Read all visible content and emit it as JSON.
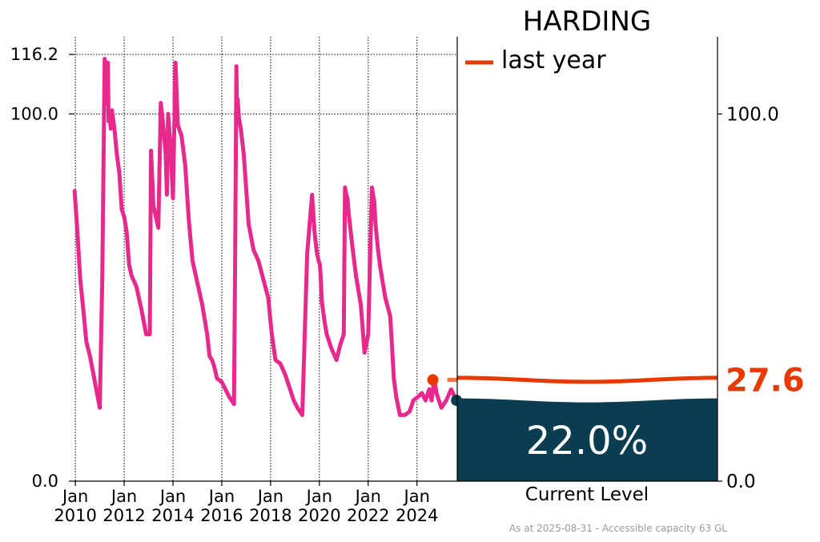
{
  "chart_data": {
    "type": "line",
    "title": "HARDING",
    "footnote": "As at 2025-08-31 - Accessible capacity 63 GL",
    "colors": {
      "history_line": "#e8298c",
      "last_year": "#e83a00",
      "current_fill": "#0b3d52",
      "current_marker": "#0b3d52"
    },
    "history": {
      "x_tick_labels": [
        [
          "Jan",
          "2010"
        ],
        [
          "Jan",
          "2012"
        ],
        [
          "Jan",
          "2014"
        ],
        [
          "Jan",
          "2016"
        ],
        [
          "Jan",
          "2018"
        ],
        [
          "Jan",
          "2020"
        ],
        [
          "Jan",
          "2022"
        ],
        [
          "Jan",
          "2024"
        ]
      ],
      "x_tick_years": [
        2010,
        2012,
        2014,
        2016,
        2018,
        2020,
        2022,
        2024
      ],
      "xlim": [
        2009.93,
        2025.65
      ],
      "y_tick_labels": [
        "0.0",
        "100.0",
        "116.2"
      ],
      "y_tick_values": [
        0,
        100,
        116.2
      ],
      "ylim": [
        0,
        121
      ],
      "grid": true,
      "series": [
        {
          "x": [
            2009.97,
            2010.08,
            2010.2,
            2010.32,
            2010.45,
            2010.6,
            2010.8,
            2011.0,
            2011.1,
            2011.2,
            2011.3,
            2011.33,
            2011.36,
            2011.4,
            2011.45,
            2011.5,
            2011.6,
            2011.7,
            2011.8,
            2011.9,
            2012.0,
            2012.1,
            2012.2,
            2012.3,
            2012.5,
            2012.7,
            2012.9,
            2013.05,
            2013.1,
            2013.2,
            2013.3,
            2013.4,
            2013.5,
            2013.6,
            2013.7,
            2013.75,
            2013.8,
            2013.9,
            2014.0,
            2014.1,
            2014.2,
            2014.35,
            2014.5,
            2014.65,
            2014.8,
            2015.0,
            2015.2,
            2015.4,
            2015.5,
            2015.6,
            2015.7,
            2015.8,
            2016.0,
            2016.15,
            2016.3,
            2016.5,
            2016.55,
            2016.6,
            2016.62,
            2016.65,
            2016.7,
            2016.78,
            2016.9,
            2017.1,
            2017.3,
            2017.5,
            2017.7,
            2017.9,
            2018.05,
            2018.2,
            2018.4,
            2018.6,
            2018.8,
            2018.95,
            2019.1,
            2019.3,
            2019.5,
            2019.7,
            2019.8,
            2019.9,
            2019.97,
            2020.02,
            2020.05,
            2020.1,
            2020.2,
            2020.3,
            2020.5,
            2020.7,
            2020.85,
            2021.0,
            2021.05,
            2021.1,
            2021.15,
            2021.2,
            2021.35,
            2021.5,
            2021.7,
            2021.85,
            2022.0,
            2022.15,
            2022.25,
            2022.3,
            2022.4,
            2022.5,
            2022.7,
            2022.9,
            2022.95,
            2023.05,
            2023.15,
            2023.3,
            2023.5,
            2023.7,
            2023.85,
            2024.05,
            2024.2,
            2024.35,
            2024.5,
            2024.6,
            2024.7,
            2024.8,
            2024.9,
            2025.0,
            2025.2,
            2025.4,
            2025.62
          ],
          "y": [
            79,
            68,
            55,
            47,
            38,
            34,
            27,
            20,
            55,
            115,
            103,
            114,
            98,
            100,
            96,
            101,
            96,
            89,
            84,
            74,
            72,
            68,
            59,
            56,
            53,
            47,
            40,
            40,
            90,
            75,
            72,
            69,
            103,
            97,
            89,
            78,
            100,
            91,
            77,
            114,
            97,
            94,
            86,
            71,
            60,
            54,
            48,
            40,
            34,
            33,
            31,
            28,
            27,
            25,
            23,
            21,
            62,
            113,
            103,
            104,
            99,
            96,
            89,
            70,
            63,
            60,
            55,
            50,
            40,
            33,
            32,
            29,
            25,
            22,
            20,
            18,
            62,
            78,
            68,
            62,
            60,
            59,
            56,
            49,
            44,
            40,
            36,
            33,
            37,
            40,
            80,
            78,
            77,
            73,
            64,
            56,
            48,
            35,
            40,
            80,
            76,
            70,
            63,
            58,
            50,
            45,
            40,
            28,
            23,
            18,
            18,
            19,
            22,
            23,
            24,
            22,
            25,
            22,
            28,
            24,
            22,
            20,
            22,
            25,
            22
          ]
        }
      ],
      "last_year_marker": {
        "x": 2024.65,
        "y": 27.6
      },
      "current_marker": {
        "x": 2025.62,
        "y": 22
      }
    },
    "gauge": {
      "y_tick_labels": [
        "0.0",
        "100.0"
      ],
      "y_tick_values": [
        0,
        100
      ],
      "ylim": [
        0,
        121
      ],
      "current_level_percent": 22.0,
      "current_level_text": "22.0%",
      "current_level_label": "Current Level",
      "last_year_value": 27.6,
      "last_year_text": "27.6",
      "legend": {
        "label": "last year",
        "placement": "top-left"
      }
    }
  }
}
